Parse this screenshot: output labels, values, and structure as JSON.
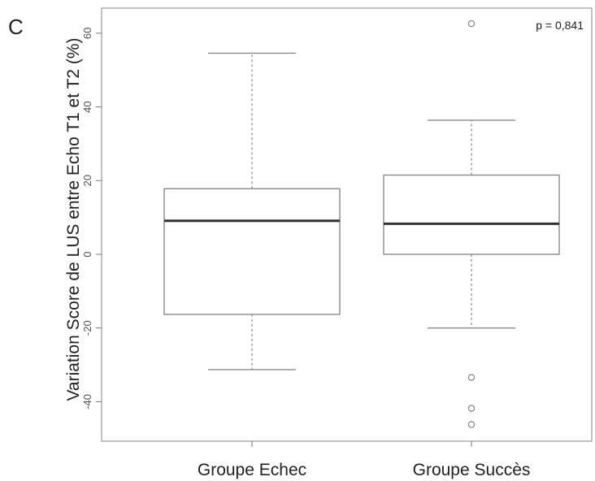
{
  "panel_label": "C",
  "chart_data": {
    "type": "box",
    "title": "",
    "xlabel": "",
    "ylabel": "Variation Score de LUS entre Echo T1 et T2 (%)",
    "ylim": [
      -50,
      66
    ],
    "yticks": [
      -40,
      -20,
      0,
      20,
      40,
      60
    ],
    "ytick_labels": [
      "-40",
      "-20",
      "0",
      "20",
      "40",
      "60"
    ],
    "grid": false,
    "legend": "none",
    "annotation": "p = 0,841",
    "categories": [
      "Groupe Echec",
      "Groupe Succès"
    ],
    "boxes": [
      {
        "category": "Groupe Echec",
        "whisker_low": -31.3,
        "q1": -16.3,
        "median": 9.1,
        "q3": 17.8,
        "whisker_high": 54.6,
        "outliers": []
      },
      {
        "category": "Groupe Succès",
        "whisker_low": -20.0,
        "q1": 0.0,
        "median": 8.3,
        "q3": 21.5,
        "whisker_high": 36.4,
        "outliers": [
          62.6,
          -33.4,
          -41.8,
          -46.2
        ]
      }
    ],
    "colors": {
      "box_border": "#8a8a8a",
      "median": "#333333",
      "whisker": "#8a8a8a",
      "outlier": "#8a8a8a",
      "frame": "#999999"
    }
  }
}
